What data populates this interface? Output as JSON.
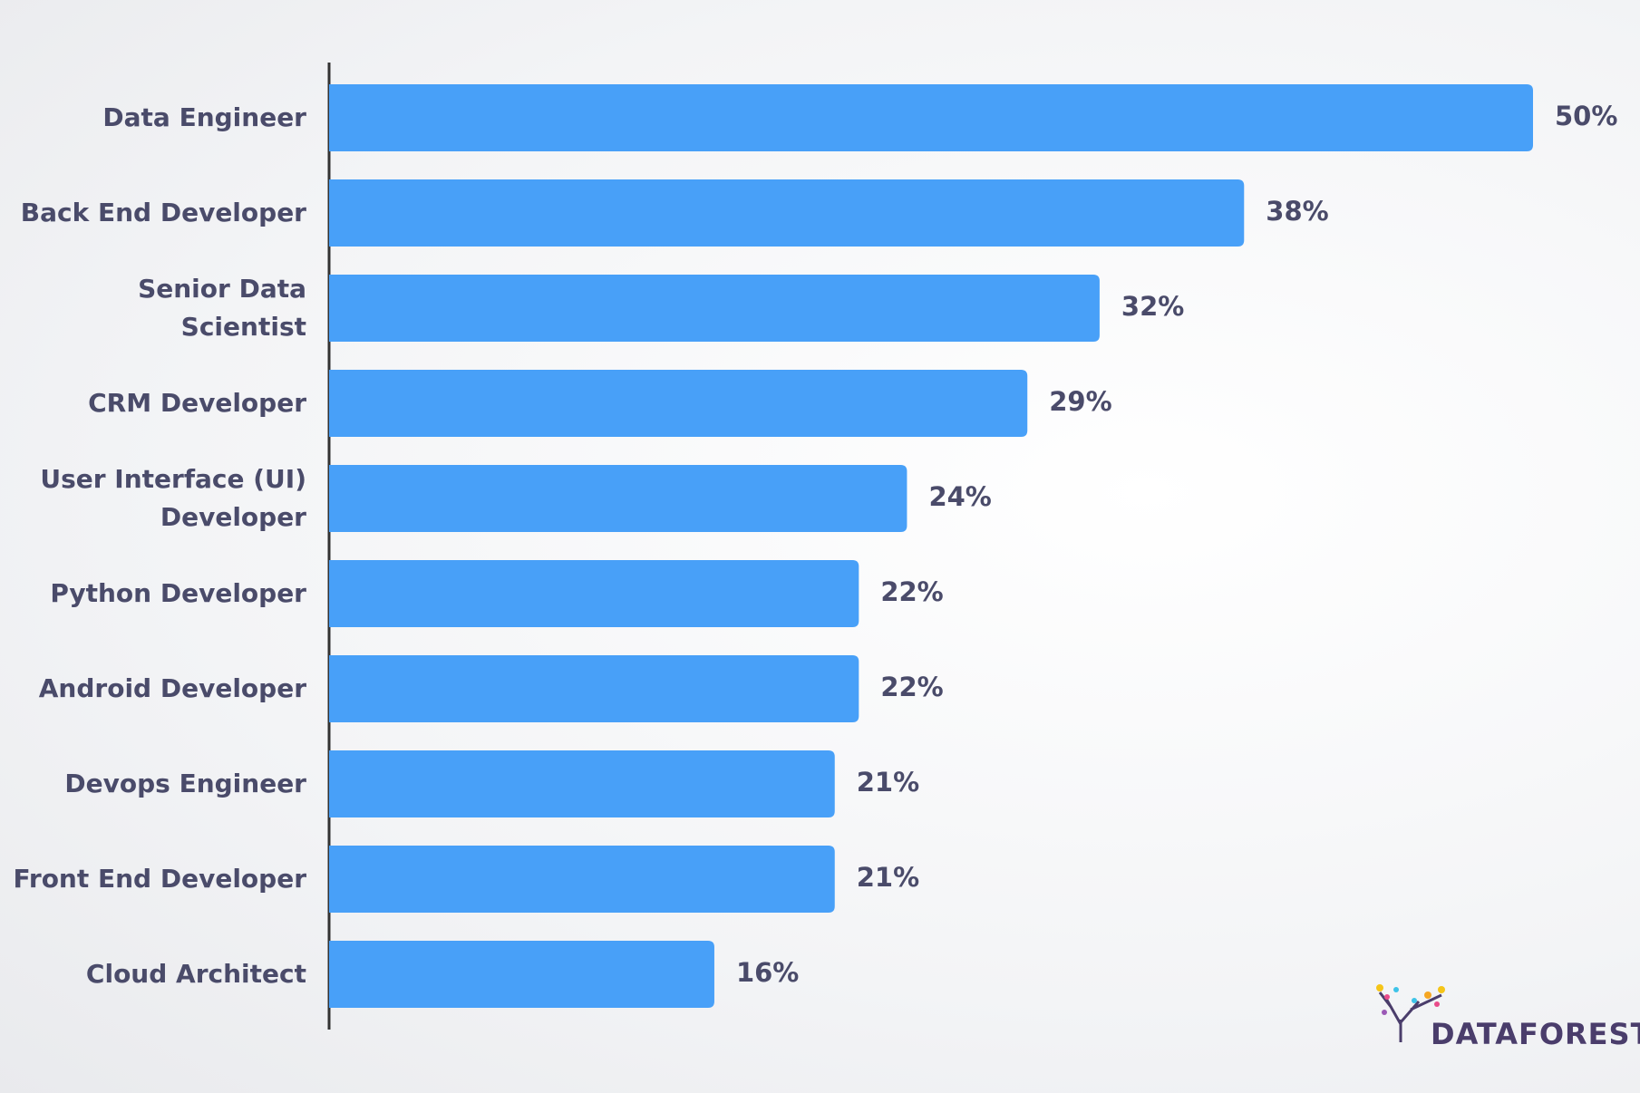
{
  "chart_data": {
    "type": "bar",
    "orientation": "horizontal",
    "categories": [
      "Data Engineer",
      "Back End Developer",
      "Senior Data Scientist",
      "CRM Developer",
      "User Interface (UI) Developer",
      "Python Developer",
      "Android Developer",
      "Devops Engineer",
      "Front End Developer",
      "Cloud Architect"
    ],
    "values": [
      50,
      38,
      32,
      29,
      24,
      22,
      22,
      21,
      21,
      16
    ],
    "value_labels": [
      "50%",
      "38%",
      "32%",
      "29%",
      "24%",
      "22%",
      "22%",
      "21%",
      "21%",
      "16%"
    ],
    "color": "#48a0f8",
    "xlim": [
      0,
      50
    ]
  },
  "brand": "DATAFOREST"
}
